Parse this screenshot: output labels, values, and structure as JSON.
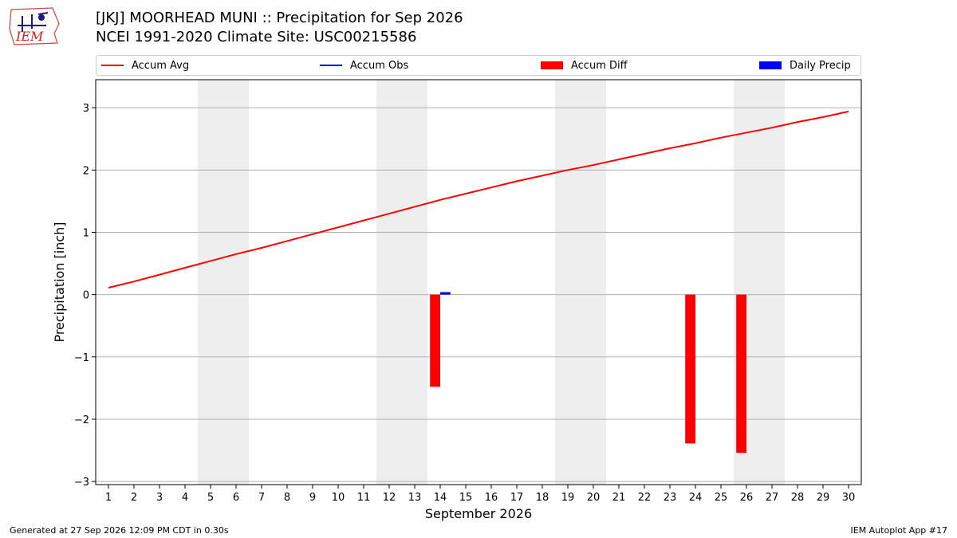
{
  "header": {
    "title_line1": "[JKJ] MOORHEAD MUNI :: Precipitation for Sep 2026",
    "title_line2": "NCEI 1991-2020 Climate Site: USC00215586",
    "logo_text": "IEM"
  },
  "legend": [
    {
      "label": "Accum Avg",
      "kind": "line",
      "color": "#ff0000"
    },
    {
      "label": "Accum Obs",
      "kind": "line",
      "color": "#0000ff"
    },
    {
      "label": "Accum Diff",
      "kind": "box",
      "color": "#ff0000"
    },
    {
      "label": "Daily Precip",
      "kind": "box",
      "color": "#0000ff"
    }
  ],
  "footer": {
    "left": "Generated at 27 Sep 2026 12:09 PM CDT in 0.30s",
    "right": "IEM Autoplot App #17"
  },
  "chart_data": {
    "type": "bar",
    "title": "[JKJ] MOORHEAD MUNI :: Precipitation for Sep 2026",
    "subtitle": "NCEI 1991-2020 Climate Site: USC00215586",
    "xlabel": "September 2026",
    "ylabel": "Precipitation [inch]",
    "xlim": [
      0.5,
      30.5
    ],
    "ylim": [
      -3.05,
      3.45
    ],
    "yticks": [
      -3,
      -2,
      -1,
      0,
      1,
      2,
      3
    ],
    "ytick_labels": [
      "−3",
      "−2",
      "−1",
      "0",
      "1",
      "2",
      "3"
    ],
    "x": [
      1,
      2,
      3,
      4,
      5,
      6,
      7,
      8,
      9,
      10,
      11,
      12,
      13,
      14,
      15,
      16,
      17,
      18,
      19,
      20,
      21,
      22,
      23,
      24,
      25,
      26,
      27,
      28,
      29,
      30
    ],
    "grid": "horizontal",
    "weekend_shading": [
      [
        4.5,
        6.5
      ],
      [
        11.5,
        13.5
      ],
      [
        18.5,
        20.5
      ],
      [
        25.5,
        27.5
      ]
    ],
    "series": [
      {
        "name": "Accum Avg",
        "kind": "line",
        "color": "#ff0000",
        "values": [
          0.11,
          0.21,
          0.32,
          0.43,
          0.54,
          0.65,
          0.75,
          0.86,
          0.97,
          1.08,
          1.19,
          1.3,
          1.41,
          1.52,
          1.62,
          1.72,
          1.82,
          1.91,
          2.0,
          2.08,
          2.17,
          2.26,
          2.35,
          2.43,
          2.52,
          2.6,
          2.68,
          2.77,
          2.85,
          2.94
        ]
      },
      {
        "name": "Accum Diff",
        "kind": "bar",
        "color": "#ff0000",
        "points": [
          {
            "x": 14,
            "y": -1.48
          },
          {
            "x": 24,
            "y": -2.39
          },
          {
            "x": 26,
            "y": -2.54
          }
        ]
      },
      {
        "name": "Daily Precip",
        "kind": "bar",
        "color": "#0000ff",
        "points": [
          {
            "x": 14,
            "y": 0.04
          }
        ]
      }
    ]
  }
}
